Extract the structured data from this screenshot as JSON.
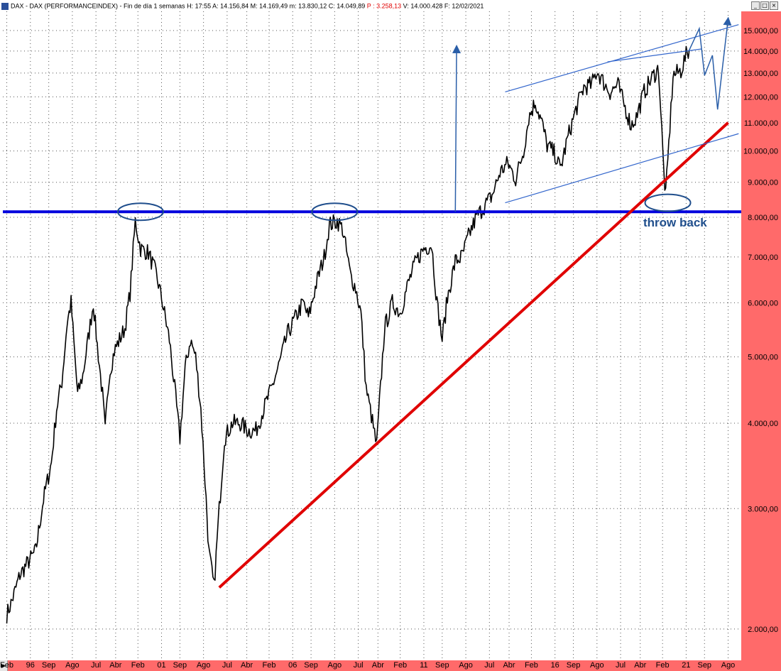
{
  "titlebar": {
    "text": "DAX - DAX (PERFORMANCEINDEX) - Fin de día 1 semanas  H: 17:55  A: 14.156,84  M: 14.169,49  m: 13.830,12  C: 14.049,89",
    "p_text": "P : 3.258,13",
    "v_text": "V: 14.000.428  F: 12/02/2021",
    "minimize": "_",
    "maximize": "□",
    "close": "×"
  },
  "colors": {
    "price": "#000000",
    "support": "#0000dd",
    "trend": "#e00000",
    "channel": "#3366cc",
    "axis_bg": "#ff6a6a",
    "grid": "#555555"
  },
  "annotation": "throw back",
  "chart_data": {
    "type": "line",
    "title": "DAX - DAX (PERFORMANCEINDEX)",
    "y_scale": "log",
    "ylim": [
      1800,
      16000
    ],
    "grid": true,
    "y_ticks": [
      {
        "value": 2000,
        "label": "2.000,00"
      },
      {
        "value": 3000,
        "label": "3.000,00"
      },
      {
        "value": 4000,
        "label": "4.000,00"
      },
      {
        "value": 5000,
        "label": "5.000,00"
      },
      {
        "value": 6000,
        "label": "6.000,00"
      },
      {
        "value": 7000,
        "label": "7.000,00"
      },
      {
        "value": 8000,
        "label": "8.000,00"
      },
      {
        "value": 9000,
        "label": "9.000,00"
      },
      {
        "value": 10000,
        "label": "10.000,00"
      },
      {
        "value": 11000,
        "label": "11.000,00"
      },
      {
        "value": 12000,
        "label": "12.000,00"
      },
      {
        "value": 13000,
        "label": "13.000,00"
      },
      {
        "value": 14000,
        "label": "14.000,00"
      },
      {
        "value": 15000,
        "label": "15.000,00"
      }
    ],
    "x_ticks": [
      {
        "t": 1995.1,
        "label": "Feb"
      },
      {
        "t": 1996.0,
        "label": "96"
      },
      {
        "t": 1996.7,
        "label": "Sep"
      },
      {
        "t": 1997.6,
        "label": "Ago"
      },
      {
        "t": 1998.5,
        "label": "Jul"
      },
      {
        "t": 1999.25,
        "label": "Abr"
      },
      {
        "t": 2000.1,
        "label": "Feb"
      },
      {
        "t": 2001.0,
        "label": "01"
      },
      {
        "t": 2001.7,
        "label": "Sep"
      },
      {
        "t": 2002.6,
        "label": "Ago"
      },
      {
        "t": 2003.5,
        "label": "Jul"
      },
      {
        "t": 2004.25,
        "label": "Abr"
      },
      {
        "t": 2005.1,
        "label": "Feb"
      },
      {
        "t": 2006.0,
        "label": "06"
      },
      {
        "t": 2006.7,
        "label": "Sep"
      },
      {
        "t": 2007.6,
        "label": "Ago"
      },
      {
        "t": 2008.5,
        "label": "Jul"
      },
      {
        "t": 2009.25,
        "label": "Abr"
      },
      {
        "t": 2010.1,
        "label": "Feb"
      },
      {
        "t": 2011.0,
        "label": "11"
      },
      {
        "t": 2011.7,
        "label": "Sep"
      },
      {
        "t": 2012.6,
        "label": "Ago"
      },
      {
        "t": 2013.5,
        "label": "Jul"
      },
      {
        "t": 2014.25,
        "label": "Abr"
      },
      {
        "t": 2015.1,
        "label": "Feb"
      },
      {
        "t": 2016.0,
        "label": "16"
      },
      {
        "t": 2016.7,
        "label": "Sep"
      },
      {
        "t": 2017.6,
        "label": "Ago"
      },
      {
        "t": 2018.5,
        "label": "Jul"
      },
      {
        "t": 2019.25,
        "label": "Abr"
      },
      {
        "t": 2020.1,
        "label": "Feb"
      },
      {
        "t": 2021.0,
        "label": "21"
      },
      {
        "t": 2021.7,
        "label": "Sep"
      },
      {
        "t": 2022.6,
        "label": "Ago"
      }
    ],
    "series": [
      {
        "x": [
          1995.1,
          1995.3,
          1995.6,
          1995.9,
          1996.2,
          1996.5,
          1996.8,
          1997.0,
          1997.2,
          1997.4,
          1997.55,
          1997.8,
          1998.0,
          1998.2,
          1998.4,
          1998.55,
          1998.75,
          1998.85,
          1999.0,
          1999.2,
          1999.4,
          1999.6,
          1999.8,
          2000.0,
          2000.2,
          2000.5,
          2000.8,
          2001.0,
          2001.3,
          2001.5,
          2001.7,
          2001.9,
          2002.1,
          2002.3,
          2002.5,
          2002.7,
          2002.8,
          2003.0,
          2003.2,
          2003.4,
          2003.7,
          2004.0,
          2004.3,
          2004.6,
          2004.9,
          2005.2,
          2005.5,
          2005.8,
          2006.1,
          2006.4,
          2006.6,
          2006.9,
          2007.2,
          2007.4,
          2007.7,
          2007.9,
          2008.2,
          2008.4,
          2008.6,
          2008.8,
          2009.0,
          2009.2,
          2009.5,
          2009.8,
          2010.1,
          2010.4,
          2010.7,
          2011.0,
          2011.3,
          2011.5,
          2011.7,
          2011.9,
          2012.2,
          2012.45,
          2012.7,
          2013.0,
          2013.3,
          2013.6,
          2013.9,
          2014.2,
          2014.5,
          2014.8,
          2015.0,
          2015.25,
          2015.5,
          2015.7,
          2016.0,
          2016.2,
          2016.5,
          2016.8,
          2017.1,
          2017.4,
          2017.6,
          2017.9,
          2018.1,
          2018.4,
          2018.6,
          2018.9,
          2019.1,
          2019.4,
          2019.7,
          2019.95,
          2020.15,
          2020.22,
          2020.5,
          2020.8,
          2021.0,
          2021.12
        ],
        "values": [
          2100,
          2200,
          2400,
          2500,
          2600,
          3100,
          3500,
          4200,
          4600,
          5600,
          6000,
          4400,
          4700,
          5300,
          6000,
          5200,
          4400,
          3900,
          4700,
          5100,
          5300,
          5500,
          6200,
          7900,
          7200,
          7100,
          6600,
          6100,
          5300,
          4500,
          3800,
          4800,
          5300,
          5000,
          4200,
          3100,
          2600,
          2300,
          3000,
          3800,
          4000,
          4000,
          3900,
          3900,
          4200,
          4500,
          4900,
          5400,
          5700,
          6000,
          5700,
          6400,
          7000,
          7800,
          7900,
          7700,
          6600,
          6300,
          5800,
          4500,
          4100,
          3700,
          5500,
          6000,
          5800,
          6400,
          6900,
          7200,
          7300,
          6000,
          5300,
          6100,
          6900,
          7000,
          7500,
          8000,
          8300,
          8600,
          9300,
          9600,
          9100,
          10000,
          11200,
          11800,
          11000,
          10200,
          9900,
          9400,
          10500,
          11500,
          12400,
          12500,
          13100,
          12500,
          12200,
          12500,
          11800,
          10900,
          11200,
          12200,
          12800,
          13200,
          9300,
          8600,
          12900,
          13100,
          13800,
          14050
        ]
      }
    ],
    "support_line": {
      "value": 8150
    },
    "trend_line": {
      "from": {
        "t": 2003.2,
        "v": 2300
      },
      "to": {
        "t": 2022.6,
        "v": 11000
      }
    },
    "channel": {
      "upper": [
        {
          "t": 2014.1,
          "v": 12200
        },
        {
          "t": 2023.0,
          "v": 15300
        }
      ],
      "upper_inner": [
        {
          "t": 2018.0,
          "v": 13500
        },
        {
          "t": 2021.6,
          "v": 14100
        }
      ],
      "lower": [
        {
          "t": 2014.1,
          "v": 8400
        },
        {
          "t": 2023.0,
          "v": 10600
        }
      ]
    },
    "highlights": [
      {
        "t": 2000.2,
        "v": 8150
      },
      {
        "t": 2007.6,
        "v": 8150
      },
      {
        "t": 2020.3,
        "v": 8400
      }
    ],
    "projection_arrows": [
      [
        {
          "t": 2012.2,
          "v": 8150
        },
        {
          "t": 2012.25,
          "v": 14200
        }
      ],
      [
        {
          "t": 2021.1,
          "v": 14000
        },
        {
          "t": 2021.5,
          "v": 15100
        },
        {
          "t": 2021.7,
          "v": 12900
        },
        {
          "t": 2022.0,
          "v": 13800
        },
        {
          "t": 2022.2,
          "v": 11500
        },
        {
          "t": 2022.6,
          "v": 15600
        }
      ]
    ]
  }
}
